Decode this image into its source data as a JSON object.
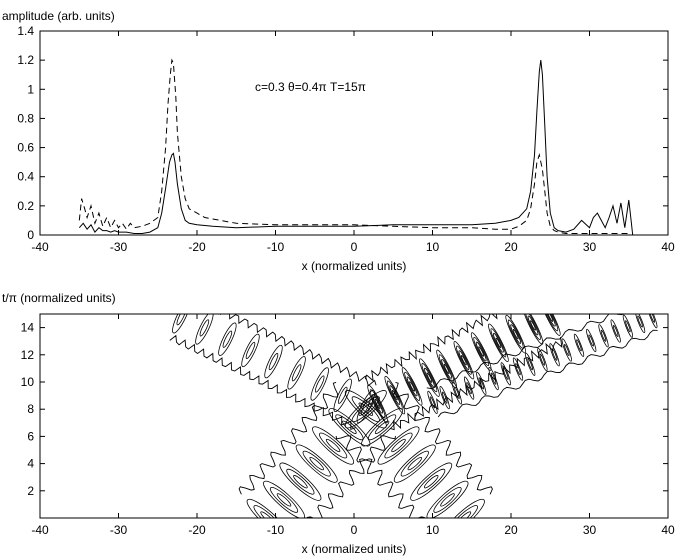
{
  "chart_data": [
    {
      "type": "line",
      "ylabel": "amplitude (arb. units)",
      "xlabel": "x (normalized units)",
      "annotation": "c=0.3   θ=0.4π  T=15π",
      "xlim": [
        -40,
        40
      ],
      "ylim": [
        0,
        1.4
      ],
      "xticks": [
        -40,
        -30,
        -20,
        -10,
        0,
        10,
        20,
        30,
        40
      ],
      "yticks": [
        0,
        0.2,
        0.4,
        0.6,
        0.8,
        1,
        1.2,
        1.4
      ],
      "grid": false,
      "series": [
        {
          "style": "solid",
          "x": [
            -35,
            -34.5,
            -34,
            -33.5,
            -33,
            -32.5,
            -32,
            -31.5,
            -31,
            -30.5,
            -30,
            -29,
            -28,
            -27,
            -26,
            -25,
            -24.5,
            -24,
            -23.5,
            -23.2,
            -23,
            -22.8,
            -22.5,
            -22,
            -21.5,
            -21,
            -20,
            -18,
            -15,
            -10,
            -5,
            0,
            5,
            10,
            15,
            18,
            20,
            21,
            22,
            22.5,
            23,
            23.3,
            23.6,
            23.8,
            24,
            24.3,
            24.6,
            25,
            25.5,
            26,
            27,
            28,
            29,
            30,
            30.5,
            31,
            31.5,
            32,
            32.5,
            33,
            33.5,
            34,
            34.5,
            35,
            35.3,
            35.5
          ],
          "y": [
            0.05,
            0.08,
            0.04,
            0.07,
            0.02,
            0.05,
            0.03,
            0.03,
            0.02,
            0.03,
            0.02,
            0.02,
            0.01,
            0.01,
            0.02,
            0.05,
            0.15,
            0.32,
            0.5,
            0.55,
            0.56,
            0.5,
            0.35,
            0.18,
            0.1,
            0.08,
            0.07,
            0.06,
            0.05,
            0.06,
            0.06,
            0.06,
            0.07,
            0.07,
            0.07,
            0.08,
            0.1,
            0.12,
            0.18,
            0.3,
            0.55,
            0.85,
            1.12,
            1.2,
            1.1,
            0.75,
            0.4,
            0.15,
            0.05,
            0.03,
            0.02,
            0.04,
            0.1,
            0.05,
            0.12,
            0.15,
            0.1,
            0.05,
            0.12,
            0.2,
            0.08,
            0.22,
            0.05,
            0.24,
            0.1,
            0
          ]
        },
        {
          "style": "dashed",
          "x": [
            -35,
            -34.7,
            -34.3,
            -34,
            -33.5,
            -33,
            -32.5,
            -32,
            -31.5,
            -31,
            -30.5,
            -30,
            -29.5,
            -29,
            -28.5,
            -28,
            -27,
            -26,
            -25,
            -24.5,
            -24,
            -23.7,
            -23.4,
            -23.2,
            -23,
            -22.7,
            -22.5,
            -22,
            -21.5,
            -21,
            -20,
            -19,
            -18,
            -15,
            -10,
            -5,
            0,
            5,
            10,
            15,
            18,
            20,
            21,
            22,
            22.5,
            23,
            23.3,
            23.6,
            24,
            24.3,
            24.6,
            25,
            25.5,
            26,
            27,
            28,
            30,
            32,
            33,
            34,
            35
          ],
          "y": [
            0.1,
            0.25,
            0.18,
            0.12,
            0.2,
            0.08,
            0.15,
            0.06,
            0.12,
            0.05,
            0.1,
            0.05,
            0.08,
            0.04,
            0.08,
            0.05,
            0.06,
            0.08,
            0.12,
            0.3,
            0.6,
            0.9,
            1.1,
            1.2,
            1.18,
            0.95,
            0.7,
            0.4,
            0.25,
            0.18,
            0.15,
            0.12,
            0.11,
            0.08,
            0.07,
            0.07,
            0.07,
            0.06,
            0.05,
            0.05,
            0.04,
            0.04,
            0.06,
            0.1,
            0.18,
            0.35,
            0.5,
            0.55,
            0.45,
            0.3,
            0.15,
            0.06,
            0.03,
            0.02,
            0.01,
            0.01,
            0.01,
            0.01,
            0.01,
            0.01,
            0.01
          ]
        }
      ]
    },
    {
      "type": "contour",
      "ylabel": "t/π (normalized units)",
      "xlabel": "x (normalized units)",
      "xlim": [
        -40,
        40
      ],
      "ylim": [
        0,
        15
      ],
      "xticks": [
        -40,
        -30,
        -20,
        -10,
        0,
        10,
        20,
        30,
        40
      ],
      "yticks": [
        2,
        4,
        6,
        8,
        10,
        12,
        14
      ],
      "grid": false,
      "tracks": [
        {
          "x0": -11,
          "t0": 0,
          "x1": 1.5,
          "t1": 8,
          "spacing_t": 1.15,
          "rings": 3,
          "band": 4.5
        },
        {
          "x0": 14,
          "t0": 0,
          "x1": 1.5,
          "t1": 8,
          "spacing_t": 1.15,
          "rings": 3,
          "band": 4.5
        },
        {
          "x0": 1.5,
          "t0": 8.2,
          "x1": -22,
          "t1": 14.8,
          "spacing_t": 0.75,
          "rings": 2,
          "band": 3
        },
        {
          "x0": 3,
          "t0": 8.4,
          "x1": 25,
          "t1": 14.8,
          "spacing_t": 0.6,
          "rings": 4,
          "band": 3.5
        },
        {
          "x0": 10,
          "t0": 8.5,
          "x1": 38,
          "t1": 14.8,
          "spacing_t": 0.35,
          "rings": 2,
          "band": 2
        }
      ]
    }
  ]
}
